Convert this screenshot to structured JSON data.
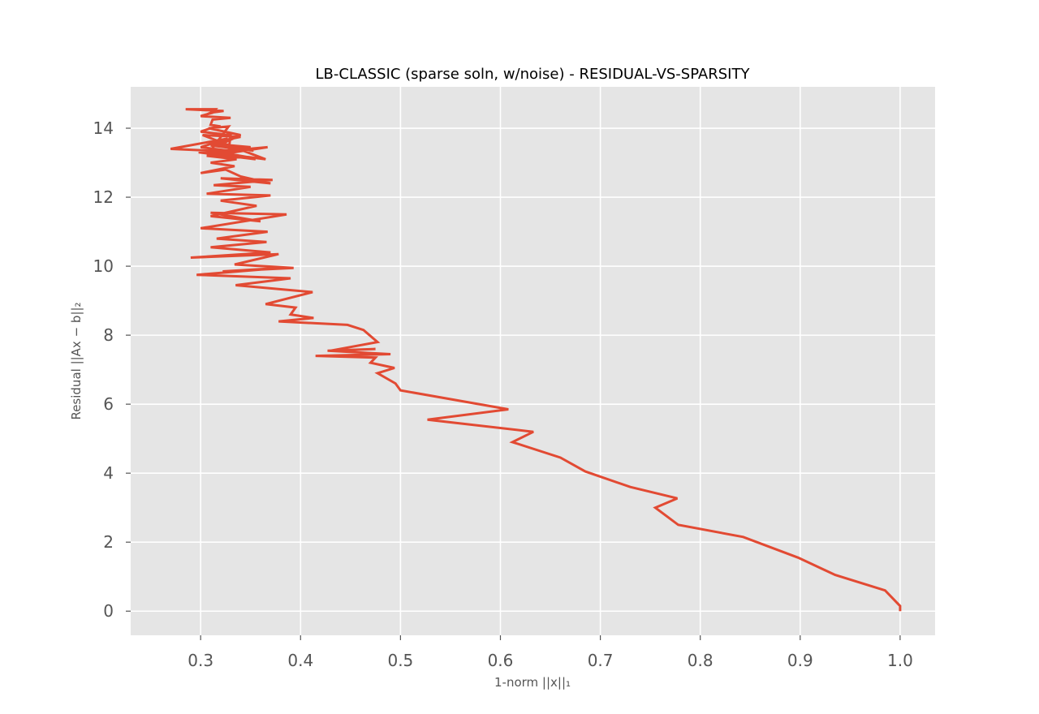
{
  "chart_data": {
    "type": "line",
    "title": "LB-CLASSIC (sparse soln, w/noise) - RESIDUAL-VS-SPARSITY",
    "xlabel": "1-norm ||x||₁",
    "ylabel": "Residual ||Ax − b||₂",
    "xlim": [
      0.23,
      1.035
    ],
    "ylim": [
      -0.7,
      15.2
    ],
    "xticks": [
      0.3,
      0.4,
      0.5,
      0.6,
      0.7,
      0.8,
      0.9,
      1.0
    ],
    "xtick_labels": [
      "0.3",
      "0.4",
      "0.5",
      "0.6",
      "0.7",
      "0.8",
      "0.9",
      "1.0"
    ],
    "yticks": [
      0,
      2,
      4,
      6,
      8,
      10,
      12,
      14
    ],
    "ytick_labels": [
      "0",
      "2",
      "4",
      "6",
      "8",
      "10",
      "12",
      "14"
    ],
    "grid": true,
    "background": "#e5e5e5",
    "line_color": "#e24a33",
    "series": [
      {
        "x": [
          1.0,
          1.0,
          0.985,
          0.935,
          0.898,
          0.843,
          0.778,
          0.755,
          0.777,
          0.73,
          0.685,
          0.66,
          0.612,
          0.633,
          0.527,
          0.608,
          0.5,
          0.495,
          0.477,
          0.494,
          0.47,
          0.475,
          0.415,
          0.49,
          0.427,
          0.475,
          0.43,
          0.477,
          0.463,
          0.447,
          0.378,
          0.413,
          0.39,
          0.395,
          0.365,
          0.412,
          0.335,
          0.39,
          0.296,
          0.38,
          0.322,
          0.393,
          0.334,
          0.378,
          0.29,
          0.37,
          0.31,
          0.366,
          0.316,
          0.367,
          0.3,
          0.386,
          0.31,
          0.36,
          0.31,
          0.356,
          0.32,
          0.37,
          0.306,
          0.35,
          0.313,
          0.372,
          0.32,
          0.37,
          0.34,
          0.325,
          0.3,
          0.334,
          0.31,
          0.336,
          0.306,
          0.35,
          0.32,
          0.355,
          0.298,
          0.345,
          0.31,
          0.353,
          0.315,
          0.34,
          0.302,
          0.365,
          0.31,
          0.367,
          0.31,
          0.35,
          0.312,
          0.325,
          0.34,
          0.308,
          0.328,
          0.31,
          0.27,
          0.327,
          0.3,
          0.328,
          0.33,
          0.3,
          0.31,
          0.32,
          0.31,
          0.312,
          0.33,
          0.3,
          0.312,
          0.315,
          0.285,
          0.323,
          0.31,
          0.306
        ],
        "y": [
          0.0,
          0.15,
          0.6,
          1.05,
          1.55,
          2.15,
          2.5,
          3.0,
          3.27,
          3.6,
          4.05,
          4.45,
          4.9,
          5.2,
          5.55,
          5.85,
          6.4,
          6.6,
          6.9,
          7.05,
          7.2,
          7.35,
          7.4,
          7.45,
          7.55,
          7.6,
          7.55,
          7.8,
          8.15,
          8.3,
          8.4,
          8.5,
          8.6,
          8.8,
          8.9,
          9.25,
          9.45,
          9.65,
          9.75,
          9.95,
          9.85,
          9.95,
          10.05,
          10.35,
          10.25,
          10.4,
          10.55,
          10.7,
          10.8,
          11.0,
          11.1,
          11.5,
          11.55,
          11.3,
          11.45,
          11.75,
          11.9,
          12.05,
          12.1,
          12.3,
          12.35,
          12.5,
          12.55,
          12.4,
          12.6,
          12.8,
          12.7,
          12.9,
          13.0,
          13.1,
          13.2,
          13.15,
          13.3,
          13.1,
          13.3,
          13.4,
          13.5,
          13.35,
          13.6,
          13.75,
          13.8,
          13.1,
          13.3,
          13.45,
          13.2,
          13.45,
          13.55,
          13.6,
          13.8,
          14.0,
          14.05,
          13.35,
          13.4,
          13.7,
          13.45,
          13.35,
          13.8,
          13.9,
          14.0,
          14.05,
          14.1,
          14.25,
          14.3,
          14.35,
          14.45,
          14.55,
          14.55,
          14.5,
          14.45,
          14.4
        ]
      }
    ]
  }
}
